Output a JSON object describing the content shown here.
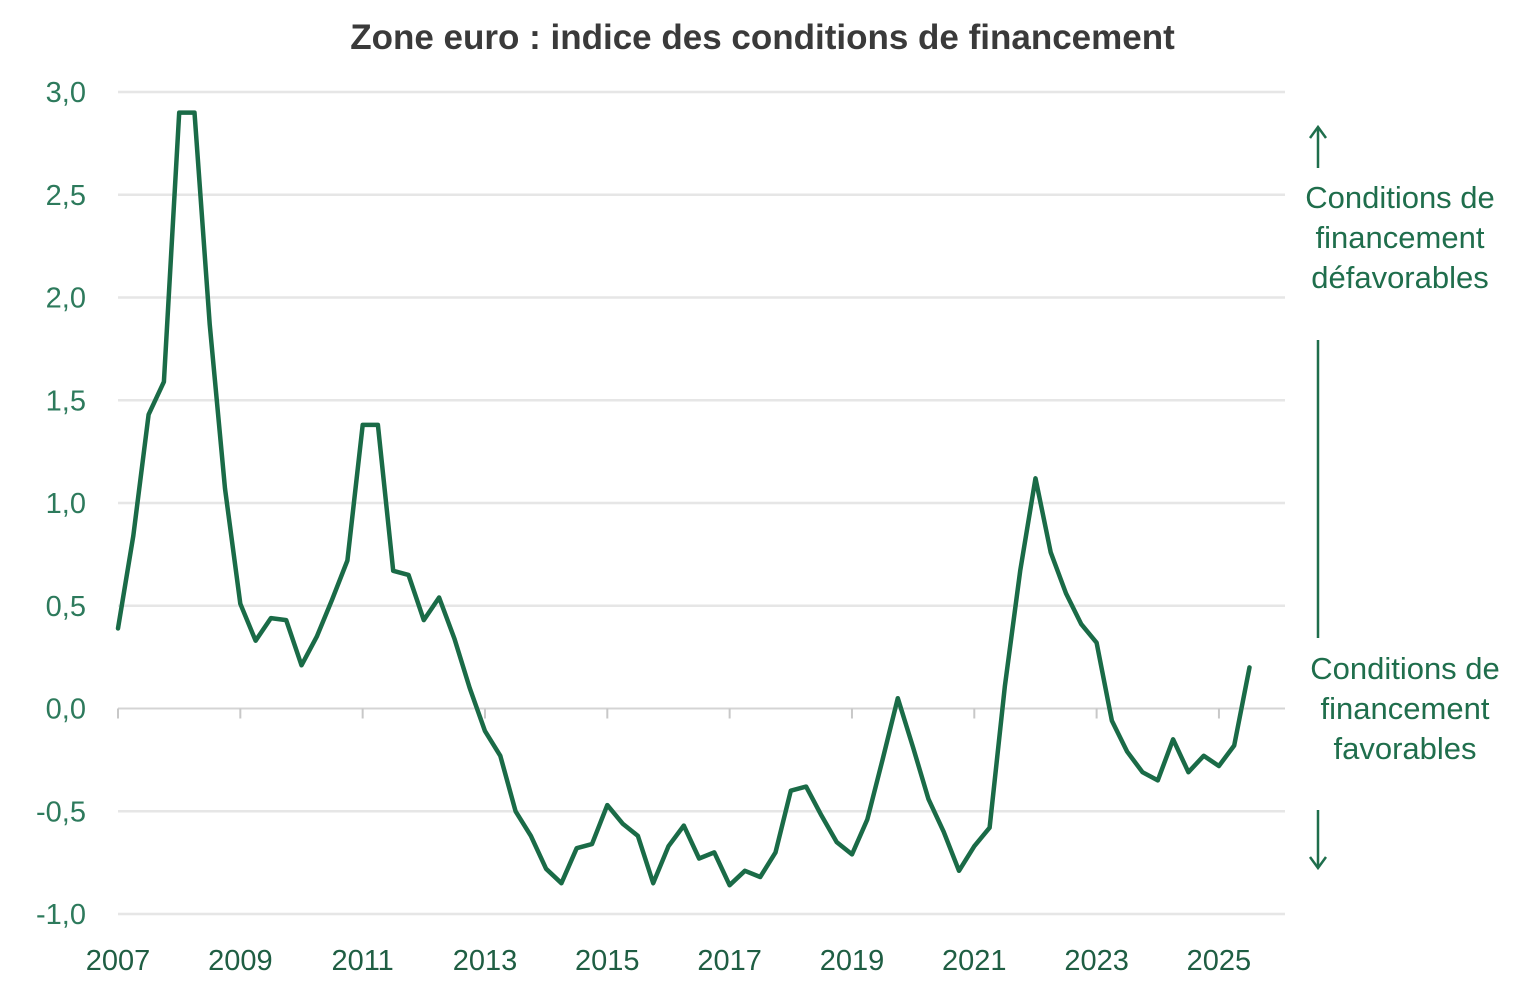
{
  "chart_data": {
    "type": "line",
    "title": "Zone euro : indice des conditions de financement",
    "xlabel": "",
    "ylabel": "",
    "ylim": [
      -1.0,
      3.0
    ],
    "y_ticks": [
      "3,0",
      "2,5",
      "2,0",
      "1,5",
      "1,0",
      "0,5",
      "0,0",
      "-0,5",
      "-1,0"
    ],
    "y_tick_values": [
      3.0,
      2.5,
      2.0,
      1.5,
      1.0,
      0.5,
      0.0,
      -0.5,
      -1.0
    ],
    "x_ticks": [
      "2007",
      "2009",
      "2011",
      "2013",
      "2015",
      "2017",
      "2019",
      "2021",
      "2023",
      "2025"
    ],
    "x_tick_values": [
      2007,
      2009,
      2011,
      2013,
      2015,
      2017,
      2019,
      2021,
      2023,
      2025
    ],
    "xlim": [
      2007,
      2026.08
    ],
    "grid": true,
    "series": [
      {
        "color": "#1a6b47",
        "x": [
          2007.0,
          2007.25,
          2007.5,
          2007.75,
          2008.0,
          2008.25,
          2008.5,
          2008.75,
          2009.0,
          2009.25,
          2009.5,
          2009.75,
          2010.0,
          2010.25,
          2010.5,
          2010.75,
          2011.0,
          2011.25,
          2011.5,
          2011.75,
          2012.0,
          2012.25,
          2012.5,
          2012.75,
          2013.0,
          2013.25,
          2013.5,
          2013.75,
          2014.0,
          2014.25,
          2014.5,
          2014.75,
          2015.0,
          2015.25,
          2015.5,
          2015.75,
          2016.0,
          2016.25,
          2016.5,
          2016.75,
          2017.0,
          2017.25,
          2017.5,
          2017.75,
          2018.0,
          2018.25,
          2018.5,
          2018.75,
          2019.0,
          2019.25,
          2019.5,
          2019.75,
          2020.0,
          2020.25,
          2020.5,
          2020.75,
          2021.0,
          2021.25,
          2021.5,
          2021.75,
          2022.0,
          2022.25,
          2022.5,
          2022.75,
          2023.0,
          2023.25,
          2023.5,
          2023.75,
          2024.0,
          2024.25,
          2024.5,
          2024.75,
          2025.0,
          2025.25,
          2025.5
        ],
        "values": [
          0.39,
          0.84,
          1.43,
          1.59,
          2.9,
          2.9,
          1.87,
          1.07,
          0.51,
          0.33,
          0.44,
          0.43,
          0.21,
          0.35,
          0.53,
          0.72,
          1.38,
          1.38,
          0.67,
          0.65,
          0.43,
          0.54,
          0.34,
          0.1,
          -0.11,
          -0.23,
          -0.5,
          -0.62,
          -0.78,
          -0.85,
          -0.68,
          -0.66,
          -0.47,
          -0.56,
          -0.62,
          -0.85,
          -0.67,
          -0.57,
          -0.73,
          -0.7,
          -0.86,
          -0.79,
          -0.82,
          -0.7,
          -0.4,
          -0.38,
          -0.52,
          -0.65,
          -0.71,
          -0.54,
          -0.25,
          0.05,
          -0.19,
          -0.44,
          -0.6,
          -0.79,
          -0.67,
          -0.58,
          0.11,
          0.67,
          1.12,
          0.76,
          0.56,
          0.41,
          0.32,
          -0.06,
          -0.21,
          -0.31,
          -0.35,
          -0.15,
          -0.31,
          -0.23,
          -0.28,
          -0.18,
          0.2
        ]
      }
    ],
    "annotations": {
      "top_label": [
        "Conditions de",
        "financement",
        "défavorables"
      ],
      "bottom_label": [
        "Conditions de",
        "financement",
        "favorables"
      ]
    }
  }
}
